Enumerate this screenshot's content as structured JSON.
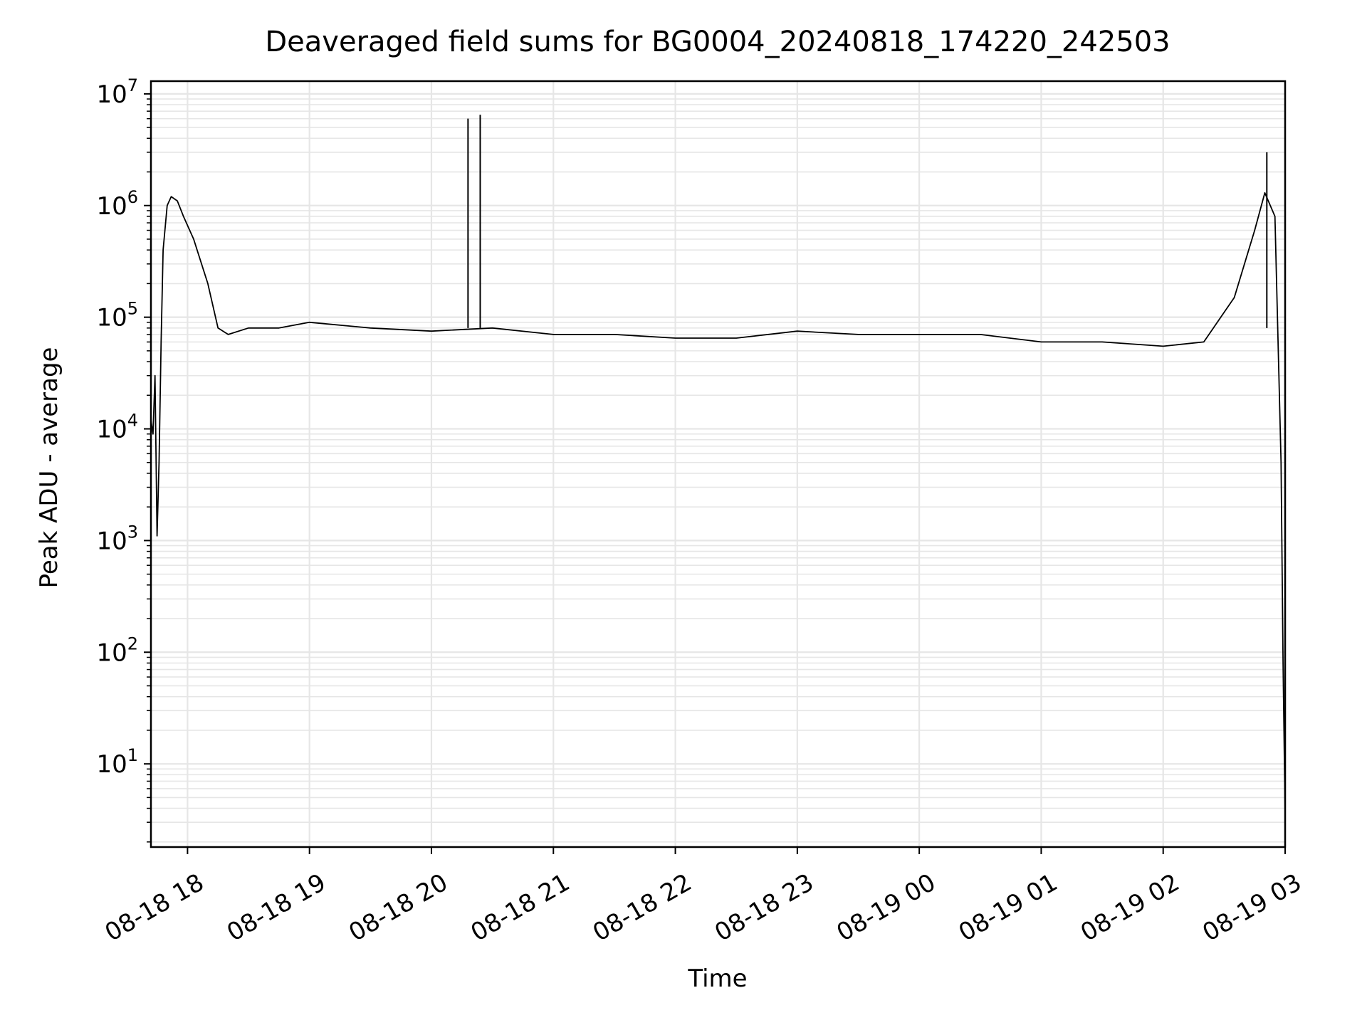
{
  "chart_data": {
    "type": "line",
    "title": "Deaveraged field sums for BG0004_20240818_174220_242503",
    "xlabel": "Time",
    "ylabel": "Peak ADU - average",
    "xscale": "time",
    "yscale": "log",
    "xlim": [
      "2024-08-18 17:42",
      "2024-08-19 03:00"
    ],
    "ylim": [
      1.8,
      13000000
    ],
    "grid": true,
    "legend": "none",
    "x_tick_labels": [
      "08-18 18",
      "08-18 19",
      "08-18 20",
      "08-18 21",
      "08-18 22",
      "08-18 23",
      "08-19 00",
      "08-19 01",
      "08-19 02",
      "08-19 03"
    ],
    "y_tick_labels": [
      {
        "base": "10",
        "exp": "1"
      },
      {
        "base": "10",
        "exp": "2"
      },
      {
        "base": "10",
        "exp": "3"
      },
      {
        "base": "10",
        "exp": "4"
      },
      {
        "base": "10",
        "exp": "5"
      },
      {
        "base": "10",
        "exp": "6"
      },
      {
        "base": "10",
        "exp": "7"
      }
    ],
    "line_color": "#000000",
    "grid_color": "#e6e6e6",
    "series": [
      {
        "x": [
          "2024-08-18 17:42",
          "2024-08-18 17:43",
          "2024-08-18 17:44",
          "2024-08-18 17:45",
          "2024-08-18 17:46",
          "2024-08-18 17:47",
          "2024-08-18 17:48",
          "2024-08-18 17:50",
          "2024-08-18 17:52",
          "2024-08-18 17:55",
          "2024-08-18 17:58",
          "2024-08-18 18:03",
          "2024-08-18 18:10",
          "2024-08-18 18:15",
          "2024-08-18 18:20",
          "2024-08-18 18:30",
          "2024-08-18 18:45",
          "2024-08-18 19:00",
          "2024-08-18 19:30",
          "2024-08-18 20:00",
          "2024-08-18 20:30",
          "2024-08-18 21:00",
          "2024-08-18 21:30",
          "2024-08-18 22:00",
          "2024-08-18 22:30",
          "2024-08-18 23:00",
          "2024-08-18 23:30",
          "2024-08-19 00:00",
          "2024-08-19 00:30",
          "2024-08-19 01:00",
          "2024-08-19 01:30",
          "2024-08-19 02:00",
          "2024-08-19 02:20",
          "2024-08-19 02:35",
          "2024-08-19 02:45",
          "2024-08-19 02:50",
          "2024-08-19 02:55",
          "2024-08-19 02:58",
          "2024-08-19 02:59",
          "2024-08-19 03:00"
        ],
        "y": [
          12000,
          9000,
          30000,
          1100,
          5000,
          60000,
          400000,
          1000000,
          1200000,
          1100000,
          800000,
          500000,
          200000,
          80000,
          70000,
          80000,
          80000,
          90000,
          80000,
          75000,
          80000,
          70000,
          70000,
          65000,
          65000,
          75000,
          70000,
          70000,
          70000,
          60000,
          60000,
          55000,
          60000,
          150000,
          600000,
          1300000,
          800000,
          5000,
          80,
          3.5
        ]
      },
      {
        "name": "",
        "note": "",
        "x": [
          "2024-08-18 20:18",
          "2024-08-18 20:24",
          "2024-08-19 02:51"
        ],
        "y": [
          6000000,
          6500000,
          3000000
        ]
      }
    ]
  }
}
